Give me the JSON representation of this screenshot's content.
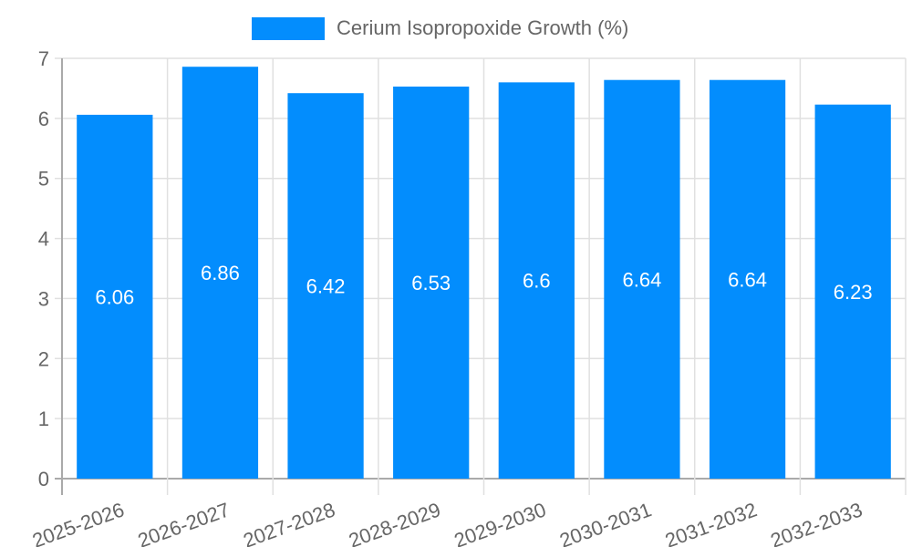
{
  "legend": {
    "label": "Cerium Isopropoxide Growth (%)",
    "color": "#038dfd"
  },
  "chart_data": {
    "type": "bar",
    "title": "",
    "xlabel": "",
    "ylabel": "",
    "categories": [
      "2025-2026",
      "2026-2027",
      "2027-2028",
      "2028-2029",
      "2029-2030",
      "2030-2031",
      "2031-2032",
      "2032-2033"
    ],
    "series": [
      {
        "name": "Cerium Isopropoxide Growth (%)",
        "values": [
          6.06,
          6.86,
          6.42,
          6.53,
          6.6,
          6.64,
          6.64,
          6.23
        ],
        "color": "#038dfd"
      }
    ],
    "ylim": [
      0,
      7
    ],
    "yticks": [
      0,
      1,
      2,
      3,
      4,
      5,
      6,
      7
    ],
    "grid": true,
    "legend_position": "top",
    "data_labels": [
      "6.06",
      "6.86",
      "6.42",
      "6.53",
      "6.6",
      "6.64",
      "6.64",
      "6.23"
    ]
  }
}
